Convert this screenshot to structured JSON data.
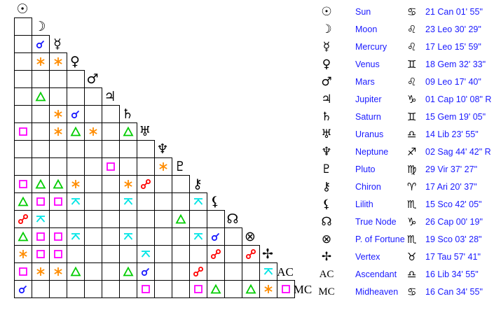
{
  "aspect_colors": {
    "conjunction": "#1a1aff",
    "sextile": "#ff8c00",
    "square": "#ff00ff",
    "trine": "#00cc00",
    "opposition": "#ff0000",
    "quincunx": "#00e5e5"
  },
  "planets": [
    {
      "glyph": "☉",
      "icon": "sun-icon",
      "name": "Sun",
      "sign_glyph": "♋",
      "sign_icon": "cancer-icon",
      "position": "21 Can 01' 55\""
    },
    {
      "glyph": "☽",
      "icon": "moon-icon",
      "name": "Moon",
      "sign_glyph": "♌",
      "sign_icon": "leo-icon",
      "position": "23 Leo 30' 29\""
    },
    {
      "glyph": "☿",
      "icon": "mercury-icon",
      "name": "Mercury",
      "sign_glyph": "♌",
      "sign_icon": "leo-icon",
      "position": "17 Leo 15' 59\""
    },
    {
      "glyph": "♀",
      "icon": "venus-icon",
      "name": "Venus",
      "sign_glyph": "♊",
      "sign_icon": "gemini-icon",
      "position": "18 Gem 32' 33\""
    },
    {
      "glyph": "♂",
      "icon": "mars-icon",
      "name": "Mars",
      "sign_glyph": "♌",
      "sign_icon": "leo-icon",
      "position": "09 Leo 17' 40\""
    },
    {
      "glyph": "♃",
      "icon": "jupiter-icon",
      "name": "Jupiter",
      "sign_glyph": "♑",
      "sign_icon": "capricorn-icon",
      "position": "01 Cap 10' 08\" R"
    },
    {
      "glyph": "♄",
      "icon": "saturn-icon",
      "name": "Saturn",
      "sign_glyph": "♊",
      "sign_icon": "gemini-icon",
      "position": "15 Gem 19' 05\""
    },
    {
      "glyph": "♅",
      "icon": "uranus-icon",
      "name": "Uranus",
      "sign_glyph": "♎",
      "sign_icon": "libra-icon",
      "position": "14 Lib 23' 55\""
    },
    {
      "glyph": "♆",
      "icon": "neptune-icon",
      "name": "Neptune",
      "sign_glyph": "♐",
      "sign_icon": "sagittarius-icon",
      "position": "02 Sag 44' 42\" R"
    },
    {
      "glyph": "♇",
      "icon": "pluto-icon",
      "name": "Pluto",
      "sign_glyph": "♍",
      "sign_icon": "virgo-icon",
      "position": "29 Vir 37' 27\""
    },
    {
      "glyph": "⚷",
      "icon": "chiron-icon",
      "name": "Chiron",
      "sign_glyph": "♈",
      "sign_icon": "aries-icon",
      "position": "17 Ari 20' 37\""
    },
    {
      "glyph": "⚸",
      "icon": "lilith-icon",
      "name": "Lilith",
      "sign_glyph": "♏",
      "sign_icon": "scorpio-icon",
      "position": "15 Sco 42' 05\""
    },
    {
      "glyph": "☊",
      "icon": "true-node-icon",
      "name": "True Node",
      "sign_glyph": "♑",
      "sign_icon": "capricorn-icon",
      "position": "26 Cap 00' 19\""
    },
    {
      "glyph": "⊗",
      "icon": "part-of-fortune-icon",
      "name": "P. of Fortune",
      "sign_glyph": "♏",
      "sign_icon": "scorpio-icon",
      "position": "19 Sco 03' 28\""
    },
    {
      "glyph": "✢",
      "icon": "vertex-icon",
      "name": "Vertex",
      "sign_glyph": "♉",
      "sign_icon": "taurus-icon",
      "position": "17 Tau 57' 41\""
    },
    {
      "glyph": "AC",
      "icon": "ascendant-label",
      "name": "Ascendant",
      "sign_glyph": "♎",
      "sign_icon": "libra-icon",
      "position": "16 Lib 34' 55\""
    },
    {
      "glyph": "MC",
      "icon": "midheaven-label",
      "name": "Midheaven",
      "sign_glyph": "♋",
      "sign_icon": "cancer-icon",
      "position": "16 Can 34' 55\""
    }
  ],
  "aspect_grid": [
    [],
    [
      ""
    ],
    [
      "",
      "conjunction"
    ],
    [
      "",
      "sextile",
      "sextile"
    ],
    [
      "",
      "",
      "",
      ""
    ],
    [
      "",
      "trine",
      "",
      "",
      ""
    ],
    [
      "",
      "",
      "sextile",
      "conjunction",
      "",
      ""
    ],
    [
      "square",
      "",
      "sextile",
      "trine",
      "sextile",
      "",
      "trine"
    ],
    [
      "",
      "",
      "",
      "",
      "",
      "",
      "",
      ""
    ],
    [
      "",
      "",
      "",
      "",
      "",
      "square",
      "",
      "",
      "sextile"
    ],
    [
      "square",
      "trine",
      "trine",
      "sextile",
      "",
      "",
      "sextile",
      "opposition",
      "",
      ""
    ],
    [
      "trine",
      "square",
      "square",
      "quincunx",
      "",
      "",
      "quincunx",
      "",
      "",
      "",
      "quincunx"
    ],
    [
      "opposition",
      "quincunx",
      "",
      "",
      "",
      "",
      "",
      "",
      "",
      "trine",
      "",
      ""
    ],
    [
      "trine",
      "square",
      "square",
      "quincunx",
      "",
      "",
      "quincunx",
      "",
      "",
      "",
      "quincunx",
      "conjunction",
      ""
    ],
    [
      "sextile",
      "square",
      "square",
      "",
      "",
      "",
      "",
      "quincunx",
      "",
      "",
      "",
      "opposition",
      "",
      "opposition"
    ],
    [
      "square",
      "sextile",
      "sextile",
      "trine",
      "",
      "",
      "trine",
      "conjunction",
      "",
      "",
      "opposition",
      "",
      "",
      "",
      "quincunx"
    ],
    [
      "conjunction",
      "",
      "",
      "",
      "",
      "",
      "",
      "square",
      "",
      "",
      "square",
      "trine",
      "",
      "trine",
      "sextile",
      "square"
    ]
  ]
}
